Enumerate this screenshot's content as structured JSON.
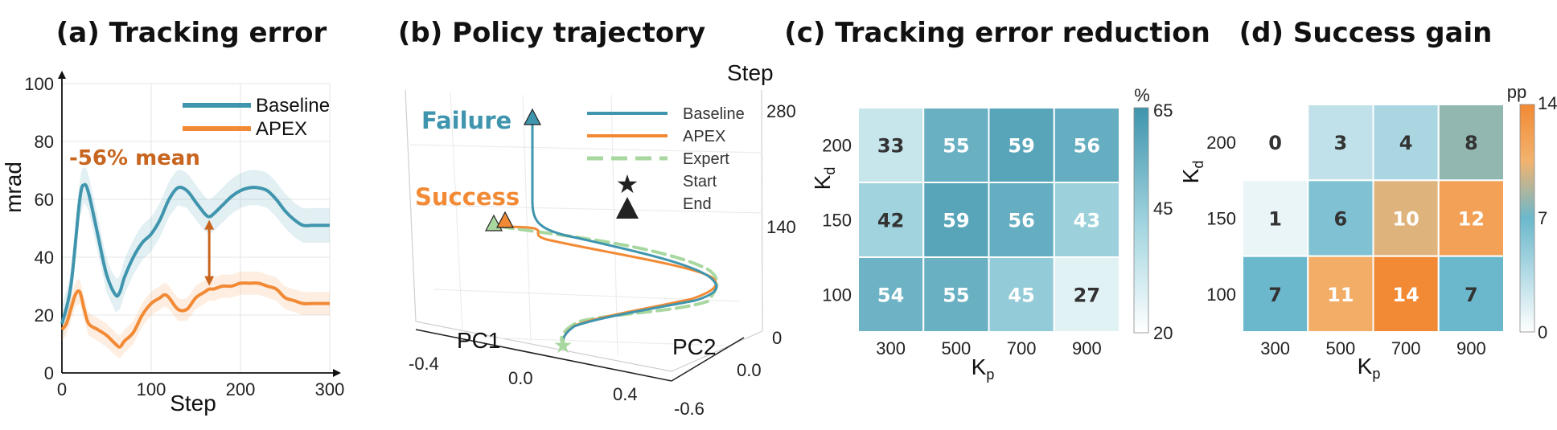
{
  "titles": {
    "a": "(a) Tracking error",
    "b": "(b) Policy trajectory",
    "c": "(c) Tracking error reduction",
    "d": "(d) Success gain"
  },
  "colors": {
    "baseline": "#3f95ad",
    "apex": "#f28a35",
    "expert": "#a8d8a0",
    "annotation": "#c8651f"
  },
  "chart_data": [
    {
      "type": "line",
      "title": "(a) Tracking error",
      "xlabel": "Step",
      "ylabel": "mrad",
      "xlim": [
        0,
        300
      ],
      "ylim": [
        0,
        100
      ],
      "xticks": [
        "0",
        "100",
        "200",
        "300"
      ],
      "yticks": [
        "0",
        "20",
        "40",
        "60",
        "80",
        "100"
      ],
      "grid": true,
      "legend": "top-right",
      "annotation": "-56% mean",
      "series": [
        {
          "name": "Baseline",
          "x": [
            0,
            10,
            20,
            25,
            30,
            40,
            50,
            60,
            65,
            70,
            80,
            90,
            100,
            110,
            120,
            130,
            140,
            150,
            160,
            165,
            170,
            180,
            190,
            200,
            210,
            220,
            230,
            240,
            250,
            260,
            270,
            280,
            290,
            300
          ],
          "y": [
            17,
            30,
            60,
            65,
            62,
            48,
            34,
            27,
            28,
            33,
            40,
            45,
            48,
            53,
            60,
            64,
            63,
            59,
            55,
            54,
            55,
            58,
            61,
            63,
            64,
            64,
            63,
            60,
            56,
            53,
            51,
            51,
            51,
            51
          ]
        },
        {
          "name": "APEX",
          "x": [
            0,
            5,
            10,
            15,
            20,
            25,
            30,
            40,
            50,
            60,
            65,
            70,
            80,
            90,
            100,
            110,
            115,
            120,
            130,
            140,
            150,
            160,
            165,
            170,
            180,
            190,
            200,
            210,
            220,
            230,
            240,
            250,
            260,
            270,
            280,
            290,
            300
          ],
          "y": [
            15,
            17,
            22,
            27,
            28,
            22,
            17,
            15,
            13,
            10,
            9,
            11,
            14,
            20,
            24,
            26,
            27,
            26,
            22,
            22,
            26,
            28,
            29,
            29,
            30,
            30,
            31,
            31,
            31,
            30,
            29,
            26,
            25,
            24,
            24,
            24,
            24
          ]
        }
      ]
    },
    {
      "type": "line",
      "title": "(b) Policy trajectory",
      "x_axis_label": "PC1",
      "y_axis_label": "PC2",
      "z_axis_label": "Step",
      "x_ticks": [
        "-0.4",
        "0.0",
        "0.4"
      ],
      "y_ticks": [
        "0.0",
        "-0.6"
      ],
      "z_ticks": [
        "280",
        "140",
        "0"
      ],
      "annotations": [
        "Failure",
        "Success"
      ],
      "legend": "top-right",
      "legend_entries": [
        "Baseline",
        "APEX",
        "Expert",
        "Start",
        "End"
      ]
    },
    {
      "type": "heatmap",
      "title": "(c) Tracking error reduction",
      "xlabel": "K",
      "xlabel_sub": "p",
      "ylabel": "K",
      "ylabel_sub": "d",
      "x_ticks": [
        "300",
        "500",
        "700",
        "900"
      ],
      "y_ticks": [
        "200",
        "150",
        "100"
      ],
      "values": [
        [
          33,
          55,
          59,
          56
        ],
        [
          42,
          59,
          56,
          43
        ],
        [
          54,
          55,
          45,
          27
        ]
      ],
      "colorbar_label": "%",
      "colorbar_ticks": [
        "65",
        "45",
        "20"
      ],
      "colorbar_range": [
        20,
        65
      ]
    },
    {
      "type": "heatmap",
      "title": "(d) Success gain",
      "xlabel": "K",
      "xlabel_sub": "p",
      "ylabel": "K",
      "ylabel_sub": "d",
      "x_ticks": [
        "300",
        "500",
        "700",
        "900"
      ],
      "y_ticks": [
        "200",
        "150",
        "100"
      ],
      "values": [
        [
          0,
          3,
          4,
          8
        ],
        [
          1,
          6,
          10,
          12
        ],
        [
          7,
          11,
          14,
          7
        ]
      ],
      "colorbar_label": "pp",
      "colorbar_ticks": [
        "14",
        "7",
        "0"
      ],
      "colorbar_range": [
        0,
        14
      ]
    }
  ]
}
